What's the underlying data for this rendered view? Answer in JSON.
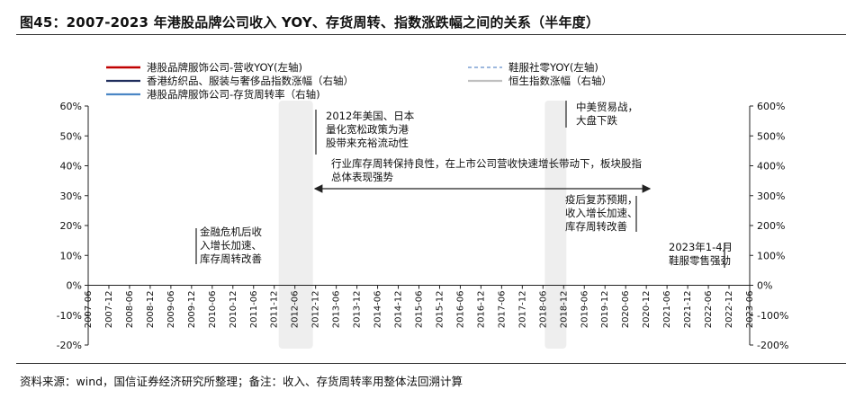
{
  "page": {
    "title": "图45：2007-2023 年港股品牌公司收入 YOY、存货周转、指数涨跌幅之间的关系（半年度）",
    "source": "资料来源：wind，国信证券经济研究所整理；备注：收入、存货周转率用整体法回溯计算"
  },
  "chart_data": {
    "type": "line",
    "legend": [
      {
        "name": "港股品牌服饰公司-营收YOY(左轴)",
        "color": "#c00000",
        "dash": "solid",
        "width": 2.5
      },
      {
        "name": "鞋服社零YOY(左轴)",
        "color": "#9db8de",
        "dash": "dashed",
        "width": 2
      },
      {
        "name": "香港纺织品、服装与奢侈品指数涨幅（右轴）",
        "color": "#1f2d5c",
        "dash": "solid",
        "width": 2.2
      },
      {
        "name": "恒生指数涨幅（右轴）",
        "color": "#bfbfbf",
        "dash": "solid",
        "width": 2.2
      },
      {
        "name": "港股品牌服饰公司-存货周转率（右轴)",
        "color": "#4a86c5",
        "dash": "solid",
        "width": 2.2
      }
    ],
    "x_ticks": [
      "2007-06",
      "2007-12",
      "2008-06",
      "2008-12",
      "2009-06",
      "2009-12",
      "2010-06",
      "2010-12",
      "2011-06",
      "2011-12",
      "2012-06",
      "2012-12",
      "2013-06",
      "2013-12",
      "2014-06",
      "2014-12",
      "2015-06",
      "2015-12",
      "2016-06",
      "2016-12",
      "2017-06",
      "2017-12",
      "2018-06",
      "2018-12",
      "2019-06",
      "2019-12",
      "2020-06",
      "2020-12",
      "2021-06",
      "2021-12",
      "2022-06",
      "2022-12",
      "2023-06"
    ],
    "y_left_ticks": [
      "60%",
      "50%",
      "40%",
      "30%",
      "20%",
      "10%",
      "0%",
      "-10%",
      "-20%"
    ],
    "y_right_ticks": [
      "600%",
      "500%",
      "400%",
      "300%",
      "200%",
      "100%",
      "0%",
      "-100%",
      "-200%"
    ],
    "ylim_left": [
      -0.2,
      0.6
    ],
    "ylim_right": [
      -2,
      6
    ],
    "annotations": [
      {
        "id": "qe",
        "lines": [
          "2012年美国、日本",
          "量化宽松政策为港",
          "股带来充裕流动性"
        ]
      },
      {
        "id": "trade",
        "lines": [
          "中美贸易战，",
          "大盘下跌"
        ]
      },
      {
        "id": "inv",
        "lines": [
          "行业库存周转保持良性，在上市公司营收快速增长带动下，板块股指",
          "总体表现强势"
        ]
      },
      {
        "id": "crisis",
        "lines": [
          "金融危机后收",
          "入增长加速、",
          "库存周转改善"
        ]
      },
      {
        "id": "covid",
        "lines": [
          "疫后复苏预期，",
          "收入增长加速、",
          "库存周转改善"
        ]
      },
      {
        "id": "y2023",
        "lines": [
          "2023年1-4月",
          "鞋服零售强劲"
        ]
      }
    ]
  }
}
